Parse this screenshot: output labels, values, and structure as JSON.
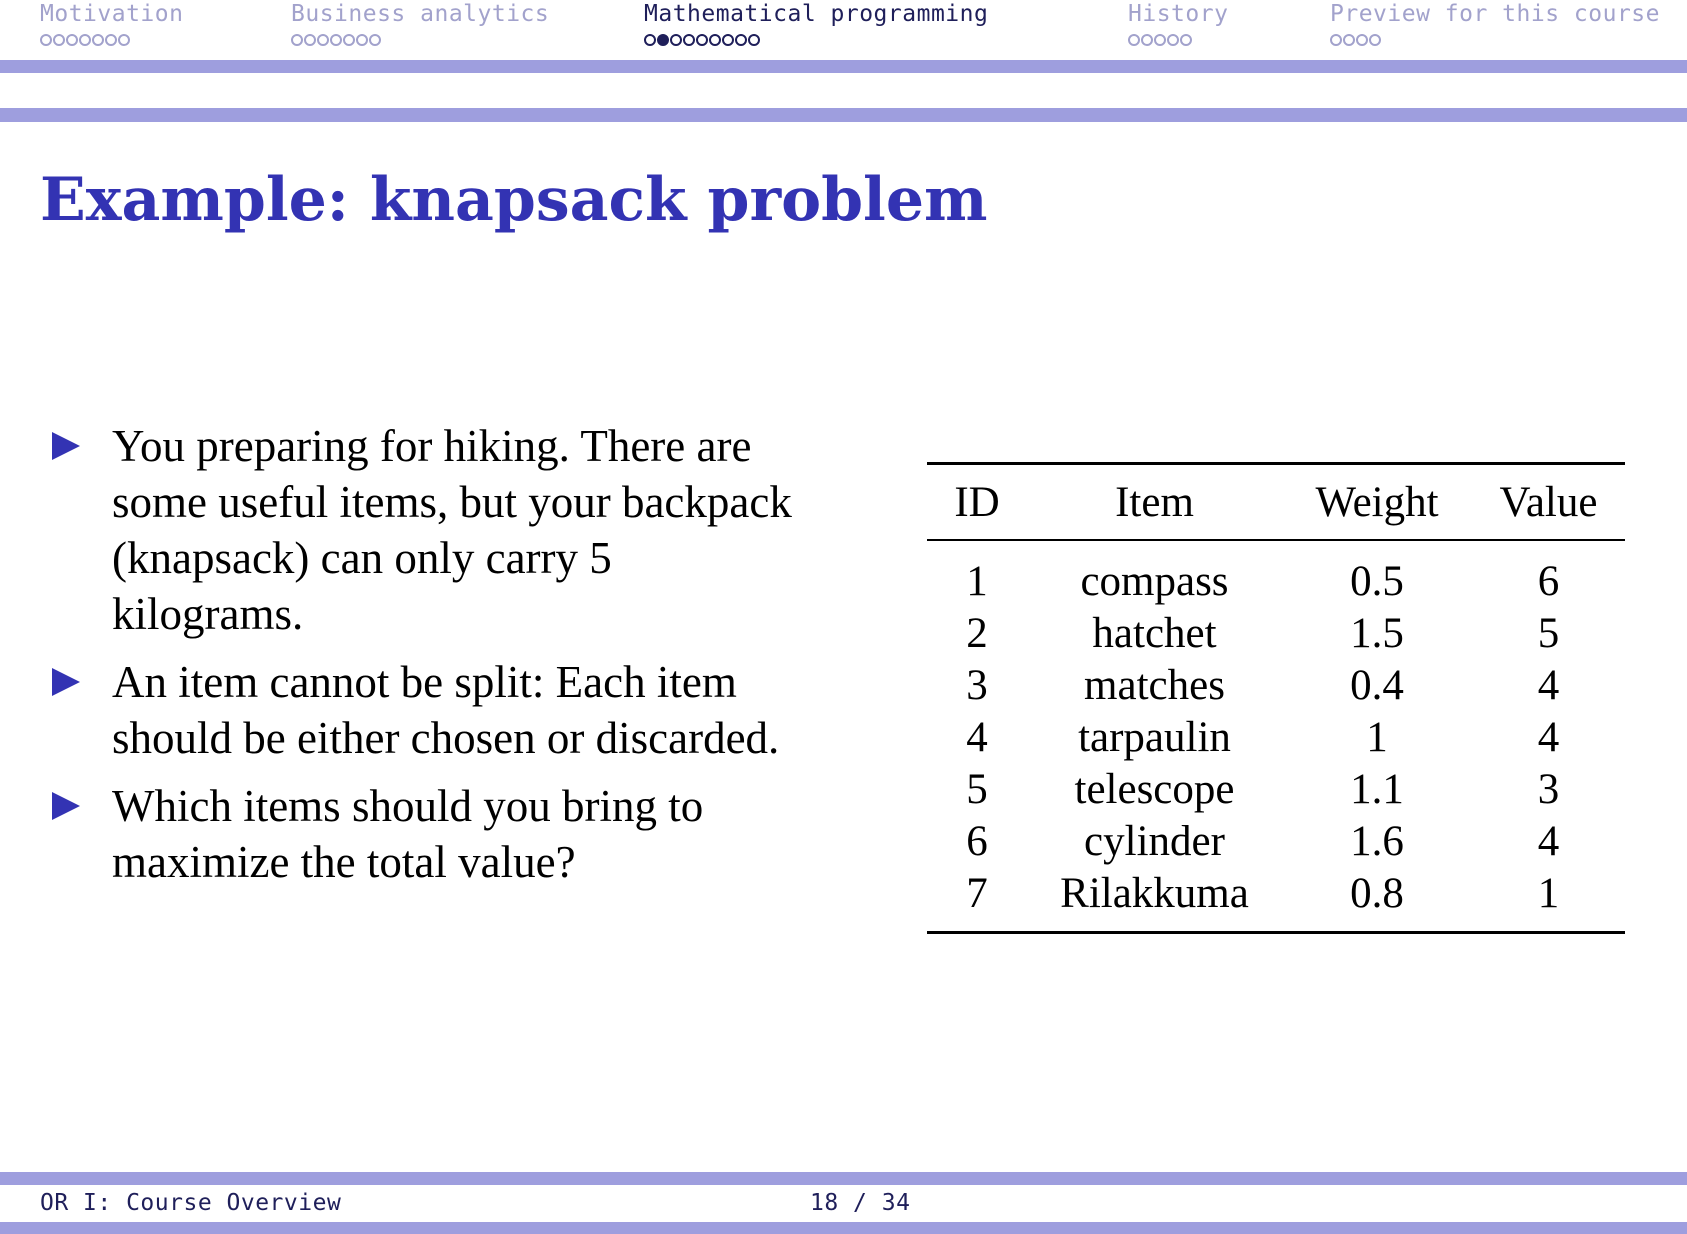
{
  "colors": {
    "accent": "#3333b3",
    "band": "#9e9ede",
    "nav_inactive": "#a2a2cc",
    "nav_active": "#1f1f5a"
  },
  "nav": {
    "sections": [
      {
        "label": "Motivation",
        "dots": 7,
        "filled_index": null,
        "current": false
      },
      {
        "label": "Business analytics",
        "dots": 7,
        "filled_index": null,
        "current": false
      },
      {
        "label": "Mathematical programming",
        "dots": 9,
        "filled_index": 1,
        "current": true
      },
      {
        "label": "History",
        "dots": 5,
        "filled_index": null,
        "current": false
      },
      {
        "label": "Preview for this course",
        "dots": 4,
        "filled_index": null,
        "current": false
      }
    ]
  },
  "slide": {
    "title": "Example:  knapsack problem",
    "bullet_icon": "triangle-right-icon",
    "bullets": [
      "You preparing for hiking. There are some useful items, but your backpack (knapsack) can only carry 5 kilograms.",
      "An item cannot be split: Each item should be either chosen or discarded.",
      "Which items should you bring to maximize the total value?"
    ]
  },
  "table": {
    "headers": [
      "ID",
      "Item",
      "Weight",
      "Value"
    ],
    "rows": [
      [
        "1",
        "compass",
        "0.5",
        "6"
      ],
      [
        "2",
        "hatchet",
        "1.5",
        "5"
      ],
      [
        "3",
        "matches",
        "0.4",
        "4"
      ],
      [
        "4",
        "tarpaulin",
        "1",
        "4"
      ],
      [
        "5",
        "telescope",
        "1.1",
        "3"
      ],
      [
        "6",
        "cylinder",
        "1.6",
        "4"
      ],
      [
        "7",
        "Rilakkuma",
        "0.8",
        "1"
      ]
    ]
  },
  "footer": {
    "title": "OR I: Course Overview",
    "page": "18 / 34"
  }
}
